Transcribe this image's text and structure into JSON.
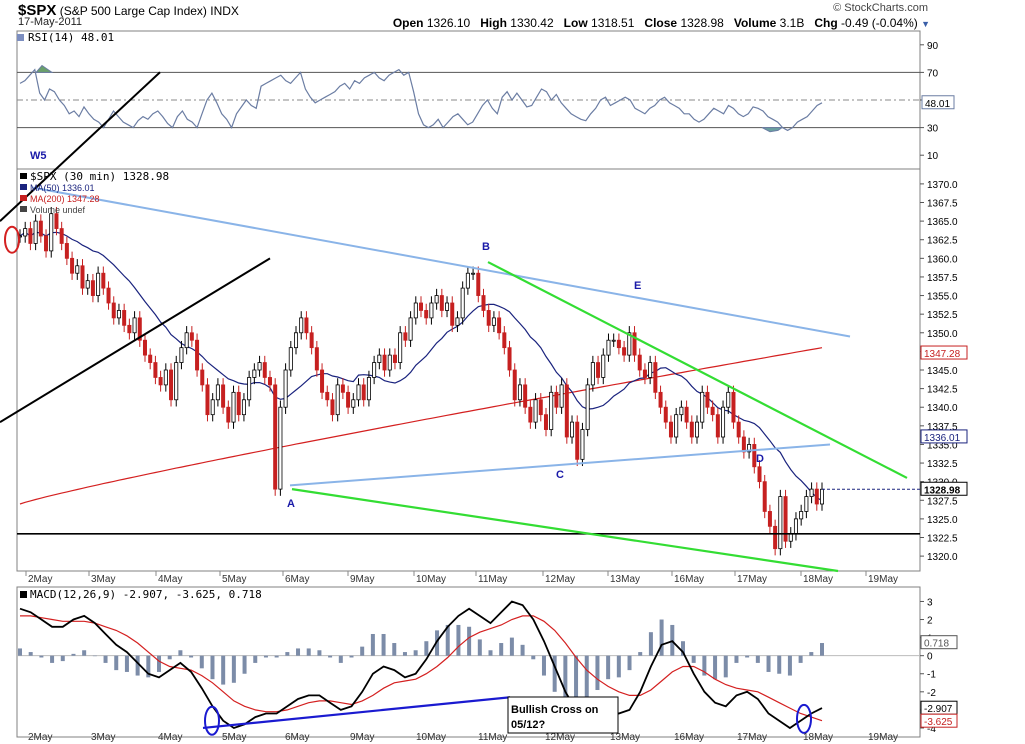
{
  "header": {
    "symbol": "$SPX",
    "name": "(S&P 500 Large Cap Index)",
    "exchange": "INDX",
    "date": "17-May-2011",
    "credit": "© StockCharts.com",
    "open_label": "Open",
    "open": "1326.10",
    "high_label": "High",
    "high": "1330.42",
    "low_label": "Low",
    "low": "1318.51",
    "close_label": "Close",
    "close": "1328.98",
    "volume_label": "Volume",
    "volume": "3.1B",
    "chg_label": "Chg",
    "chg": "-0.49 (-0.04%)"
  },
  "chart_data": [
    {
      "type": "line",
      "panel": "rsi",
      "title": "RSI(14) 48.01",
      "ylim": [
        0,
        100
      ],
      "ticks": [
        10,
        30,
        50,
        70,
        90
      ],
      "levels": [
        30,
        70
      ],
      "last_value_label": "48.01",
      "series": [
        {
          "name": "RSI(14)",
          "color": "#6b7da3",
          "values": [
            62,
            64,
            68,
            72,
            55,
            50,
            58,
            56,
            50,
            46,
            40,
            42,
            38,
            45,
            40,
            36,
            34,
            30,
            36,
            42,
            38,
            34,
            32,
            30,
            35,
            38,
            36,
            40,
            42,
            38,
            33,
            30,
            38,
            42,
            36,
            34,
            30,
            40,
            50,
            55,
            48,
            40,
            36,
            30,
            40,
            45,
            50,
            46,
            44,
            60,
            62,
            64,
            66,
            68,
            64,
            62,
            66,
            70,
            58,
            52,
            48,
            50,
            52,
            54,
            56,
            60,
            62,
            58,
            64,
            62,
            66,
            68,
            70,
            66,
            64,
            68,
            70,
            72,
            68,
            70,
            56,
            40,
            32,
            30,
            32,
            36,
            30,
            34,
            38,
            40,
            36,
            32,
            34,
            40,
            46,
            50,
            44,
            40,
            52,
            56,
            50,
            55,
            50,
            45,
            46,
            52,
            58,
            56,
            50,
            54,
            48,
            44,
            40,
            38,
            36,
            35,
            40,
            44,
            50,
            52,
            46,
            48,
            50,
            52,
            50,
            44,
            42,
            40,
            44,
            46,
            50,
            52,
            48,
            46,
            44,
            40,
            40,
            36,
            34,
            36,
            40,
            44,
            42,
            40,
            46,
            44,
            40,
            38,
            40,
            45,
            44,
            42,
            38,
            36,
            34,
            30,
            28,
            30,
            34,
            36,
            38,
            42,
            46,
            48
          ]
        }
      ]
    },
    {
      "type": "bar",
      "panel": "price",
      "title": "$SPX (30 min) 1328.98",
      "ylim": [
        1318,
        1372
      ],
      "ticks": [
        1320.0,
        1322.5,
        1325.0,
        1327.5,
        1330.0,
        1332.5,
        1335.0,
        1337.5,
        1340.0,
        1342.5,
        1345.0,
        1347.5,
        1350.0,
        1352.5,
        1355.0,
        1357.5,
        1360.0,
        1362.5,
        1365.0,
        1367.5,
        1370.0
      ],
      "x_labels": [
        "2May",
        "3May",
        "4May",
        "5May",
        "6May",
        "9May",
        "10May",
        "11May",
        "12May",
        "13May",
        "16May",
        "17May",
        "18May",
        "19May"
      ],
      "legend": [
        "$SPX (30 min) 1328.98",
        "MA(50) 1336.01",
        "MA(200) 1347.28",
        "Volume undef"
      ],
      "last_labels": {
        "close": "1328.98",
        "ma50": "1336.01",
        "ma200": "1347.28"
      },
      "close_series": [
        1363,
        1364,
        1362,
        1365,
        1363,
        1361,
        1366,
        1364,
        1362,
        1360,
        1358,
        1359,
        1356,
        1357,
        1355,
        1358,
        1356,
        1354,
        1352,
        1353,
        1351,
        1350,
        1352,
        1349,
        1347,
        1346,
        1344,
        1343,
        1345,
        1341,
        1346,
        1348,
        1350,
        1349,
        1345,
        1343,
        1339,
        1341,
        1343,
        1340,
        1338,
        1342,
        1339,
        1341,
        1344,
        1345,
        1346,
        1344,
        1343,
        1329,
        1340,
        1345,
        1348,
        1350,
        1352,
        1350,
        1348,
        1345,
        1342,
        1341,
        1339,
        1343,
        1342,
        1340,
        1341,
        1343,
        1341,
        1344,
        1346,
        1347,
        1345,
        1347,
        1346,
        1350,
        1349,
        1352,
        1354,
        1353,
        1352,
        1354,
        1355,
        1353,
        1354,
        1351,
        1352,
        1356,
        1358,
        1358,
        1355,
        1353,
        1351,
        1352,
        1350,
        1348,
        1345,
        1341,
        1343,
        1340,
        1338,
        1341,
        1339,
        1337,
        1342,
        1340,
        1343,
        1336,
        1338,
        1333,
        1337,
        1343,
        1346,
        1344,
        1347,
        1349,
        1349,
        1348,
        1347,
        1350,
        1347,
        1345,
        1344,
        1346,
        1342,
        1340,
        1338,
        1336,
        1339,
        1340,
        1338,
        1336,
        1338,
        1342,
        1340,
        1339,
        1336,
        1340,
        1342,
        1338,
        1336,
        1334,
        1335,
        1332,
        1330,
        1326,
        1324,
        1321,
        1328,
        1322,
        1323,
        1325,
        1326,
        1328,
        1329,
        1327,
        1328.98
      ],
      "annotations": [
        "W5",
        "A",
        "B",
        "C",
        "D",
        "E"
      ]
    },
    {
      "type": "line",
      "panel": "macd",
      "title": "MACD(12,26,9) -2.907, -3.625, 0.718",
      "ylim": [
        -4.5,
        3.8
      ],
      "ticks": [
        -4,
        -3,
        -2,
        -1,
        0,
        1,
        2,
        3
      ],
      "last_labels": {
        "macd": "-2.907",
        "signal": "-3.625",
        "histogram": "0.718"
      },
      "series": [
        {
          "name": "MACD",
          "color": "#000000",
          "values": [
            2.6,
            2.4,
            2.0,
            1.6,
            1.6,
            2.0,
            2.2,
            1.8,
            1.2,
            0.6,
            0.2,
            -0.4,
            -1.0,
            -1.2,
            -0.8,
            -0.4,
            -0.9,
            -1.8,
            -2.8,
            -3.6,
            -4.0,
            -3.8,
            -3.4,
            -3.2,
            -3.2,
            -2.8,
            -2.4,
            -2.2,
            -2.2,
            -2.6,
            -3.0,
            -2.8,
            -2.0,
            -1.0,
            -0.6,
            -0.8,
            -1.2,
            -1.0,
            -0.2,
            0.8,
            1.6,
            2.2,
            2.6,
            2.2,
            1.8,
            2.4,
            3.0,
            2.8,
            2.0,
            0.8,
            -0.6,
            -2.0,
            -3.0,
            -3.4,
            -3.2,
            -3.0,
            -3.2,
            -3.0,
            -2.0,
            -0.6,
            0.6,
            0.8,
            0.2,
            -1.0,
            -2.0,
            -2.6,
            -2.8,
            -2.2,
            -2.0,
            -2.4,
            -3.2,
            -3.6,
            -4.0,
            -3.6,
            -3.2,
            -2.9
          ]
        },
        {
          "name": "Signal",
          "color": "#d42020",
          "values": [
            2.2,
            2.2,
            2.1,
            2.0,
            1.9,
            1.9,
            1.9,
            1.8,
            1.6,
            1.4,
            1.1,
            0.7,
            0.2,
            -0.3,
            -0.6,
            -0.7,
            -0.8,
            -1.1,
            -1.5,
            -2.0,
            -2.5,
            -2.8,
            -3.0,
            -3.1,
            -3.1,
            -3.0,
            -2.8,
            -2.6,
            -2.5,
            -2.5,
            -2.6,
            -2.7,
            -2.5,
            -2.2,
            -1.8,
            -1.5,
            -1.4,
            -1.3,
            -1.0,
            -0.6,
            -0.1,
            0.5,
            1.0,
            1.3,
            1.5,
            1.7,
            2.0,
            2.2,
            2.2,
            1.9,
            1.4,
            0.7,
            -0.1,
            -0.8,
            -1.3,
            -1.7,
            -2.0,
            -2.2,
            -2.2,
            -1.9,
            -1.4,
            -0.9,
            -0.6,
            -0.6,
            -0.9,
            -1.3,
            -1.6,
            -1.8,
            -1.9,
            -2.0,
            -2.3,
            -2.6,
            -2.9,
            -3.2,
            -3.4,
            -3.6
          ]
        }
      ],
      "annotations": [
        "Bullish Cross on",
        "05/12?"
      ]
    }
  ]
}
